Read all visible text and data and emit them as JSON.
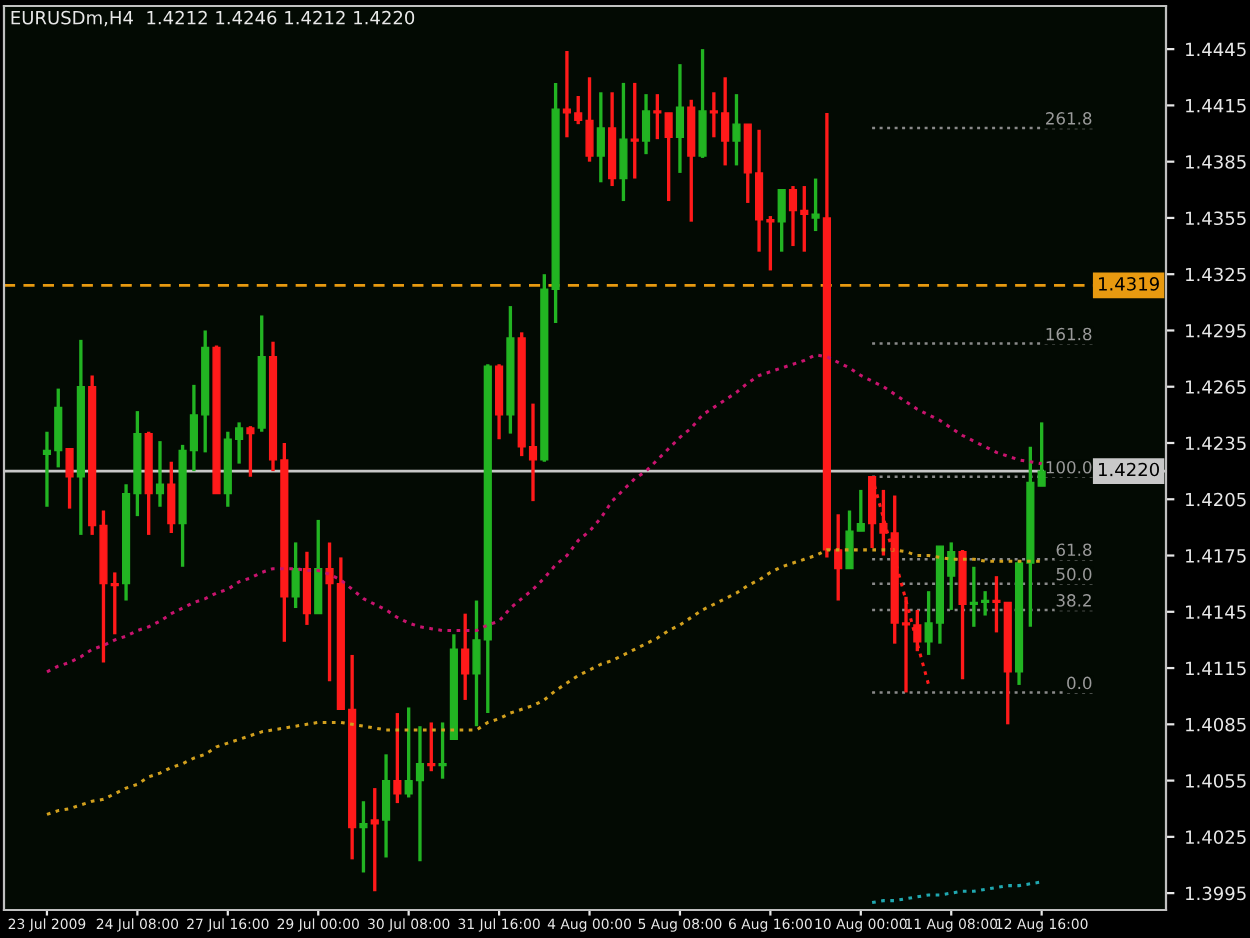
{
  "chart_data": {
    "type": "candlestick",
    "title": "EURUSDm,H4  1.4212 1.4246 1.4212 1.4220",
    "categories": [
      "23 Jul 2009",
      null,
      null,
      null,
      null,
      null,
      null,
      null,
      "24 Jul 08:00",
      null,
      null,
      null,
      null,
      null,
      null,
      null,
      "27 Jul 16:00",
      null,
      null,
      null,
      null,
      null,
      null,
      null,
      "29 Jul 00:00",
      null,
      null,
      null,
      null,
      null,
      null,
      null,
      "30 Jul 08:00",
      null,
      null,
      null,
      null,
      null,
      null,
      null,
      "31 Jul 16:00",
      null,
      null,
      null,
      null,
      null,
      null,
      null,
      "4 Aug 00:00",
      null,
      null,
      null,
      null,
      null,
      null,
      null,
      "5 Aug 08:00",
      null,
      null,
      null,
      null,
      null,
      null,
      null,
      "6 Aug 16:00",
      null,
      null,
      null,
      null,
      null,
      null,
      null,
      "10 Aug 00:00",
      null,
      null,
      null,
      null,
      null,
      null,
      null,
      "11 Aug 08:00",
      null,
      null,
      null,
      null,
      null,
      null,
      null,
      "12 Aug 16:00"
    ],
    "ohlc": [
      [
        1.4229,
        1.4241,
        1.4201,
        1.4231
      ],
      [
        1.4231,
        1.4264,
        1.4222,
        1.4254
      ],
      [
        1.4232,
        1.4232,
        1.42,
        1.4217
      ],
      [
        1.4217,
        1.429,
        1.4186,
        1.4265
      ],
      [
        1.4265,
        1.4271,
        1.4186,
        1.4191
      ],
      [
        1.4191,
        1.4199,
        1.4118,
        1.416
      ],
      [
        1.416,
        1.4166,
        1.4133,
        1.4159
      ],
      [
        1.416,
        1.4213,
        1.4151,
        1.4208
      ],
      [
        1.4208,
        1.4252,
        1.4196,
        1.424
      ],
      [
        1.424,
        1.4241,
        1.4186,
        1.4208
      ],
      [
        1.4208,
        1.4236,
        1.4201,
        1.4213
      ],
      [
        1.4213,
        1.4225,
        1.4187,
        1.4192
      ],
      [
        1.4192,
        1.4234,
        1.4169,
        1.4231
      ],
      [
        1.4231,
        1.4266,
        1.422,
        1.425
      ],
      [
        1.425,
        1.4295,
        1.423,
        1.4286
      ],
      [
        1.4286,
        1.4287,
        1.4208,
        1.4208
      ],
      [
        1.4208,
        1.4241,
        1.4201,
        1.4237
      ],
      [
        1.4237,
        1.4246,
        1.4224,
        1.4243
      ],
      [
        1.4243,
        1.4244,
        1.4217,
        1.424
      ],
      [
        1.4243,
        1.4303,
        1.4241,
        1.4281
      ],
      [
        1.4281,
        1.4289,
        1.422,
        1.4226
      ],
      [
        1.4226,
        1.4235,
        1.4129,
        1.4153
      ],
      [
        1.4153,
        1.4182,
        1.4147,
        1.4168
      ],
      [
        1.4168,
        1.4177,
        1.4138,
        1.4144
      ],
      [
        1.4144,
        1.4194,
        1.4144,
        1.4168
      ],
      [
        1.4168,
        1.4182,
        1.4108,
        1.416
      ],
      [
        1.416,
        1.4174,
        1.4093,
        1.4093
      ],
      [
        1.4093,
        1.4122,
        1.4013,
        1.403
      ],
      [
        1.403,
        1.4044,
        1.4006,
        1.4032
      ],
      [
        1.4034,
        1.4051,
        1.3996,
        1.4032
      ],
      [
        1.4034,
        1.4069,
        1.4014,
        1.4055
      ],
      [
        1.4055,
        1.4091,
        1.4043,
        1.4048
      ],
      [
        1.4048,
        1.4094,
        1.4046,
        1.4055
      ],
      [
        1.4055,
        1.4084,
        1.4012,
        1.4064
      ],
      [
        1.4064,
        1.4086,
        1.406,
        1.4063
      ],
      [
        1.4063,
        1.4086,
        1.4056,
        1.4064
      ],
      [
        1.4077,
        1.4133,
        1.4077,
        1.4125
      ],
      [
        1.4125,
        1.4144,
        1.4098,
        1.4112
      ],
      [
        1.4112,
        1.4151,
        1.4084,
        1.413
      ],
      [
        1.413,
        1.4277,
        1.4091,
        1.4276
      ],
      [
        1.4276,
        1.4277,
        1.4237,
        1.425
      ],
      [
        1.425,
        1.4308,
        1.424,
        1.4291
      ],
      [
        1.4291,
        1.4294,
        1.4228,
        1.4233
      ],
      [
        1.4233,
        1.4256,
        1.4204,
        1.4226
      ],
      [
        1.4226,
        1.4325,
        1.4225,
        1.4317
      ],
      [
        1.4317,
        1.4427,
        1.4299,
        1.4413
      ],
      [
        1.4413,
        1.4444,
        1.4398,
        1.4411
      ],
      [
        1.4411,
        1.442,
        1.4405,
        1.4407
      ],
      [
        1.4407,
        1.443,
        1.4385,
        1.4388
      ],
      [
        1.4388,
        1.4422,
        1.4374,
        1.4403
      ],
      [
        1.4403,
        1.4422,
        1.4372,
        1.4376
      ],
      [
        1.4376,
        1.4427,
        1.4364,
        1.4397
      ],
      [
        1.4397,
        1.4427,
        1.4376,
        1.4396
      ],
      [
        1.4396,
        1.4421,
        1.4389,
        1.4412
      ],
      [
        1.4412,
        1.4421,
        1.4397,
        1.4411
      ],
      [
        1.4411,
        1.4411,
        1.4364,
        1.4398
      ],
      [
        1.4398,
        1.4437,
        1.4379,
        1.4414
      ],
      [
        1.4414,
        1.4418,
        1.4353,
        1.4388
      ],
      [
        1.4388,
        1.4445,
        1.4387,
        1.4412
      ],
      [
        1.4412,
        1.4422,
        1.4398,
        1.4411
      ],
      [
        1.4411,
        1.443,
        1.4383,
        1.4396
      ],
      [
        1.4396,
        1.4421,
        1.4383,
        1.4405
      ],
      [
        1.4405,
        1.4405,
        1.4363,
        1.4379
      ],
      [
        1.4379,
        1.4402,
        1.4337,
        1.4354
      ],
      [
        1.4354,
        1.4356,
        1.4327,
        1.4353
      ],
      [
        1.4353,
        1.437,
        1.4337,
        1.437
      ],
      [
        1.437,
        1.4372,
        1.434,
        1.4359
      ],
      [
        1.4359,
        1.4372,
        1.4337,
        1.4357
      ],
      [
        1.4355,
        1.4376,
        1.4348,
        1.4357
      ],
      [
        1.4355,
        1.4411,
        1.4174,
        1.4178
      ],
      [
        1.4178,
        1.4197,
        1.4151,
        1.4168
      ],
      [
        1.4168,
        1.4199,
        1.4168,
        1.4188
      ],
      [
        1.4188,
        1.421,
        1.4188,
        1.4192
      ],
      [
        1.4217,
        1.4217,
        1.4179,
        1.4192
      ],
      [
        1.4192,
        1.421,
        1.4175,
        1.4187
      ],
      [
        1.4187,
        1.4207,
        1.4128,
        1.4139
      ],
      [
        1.4139,
        1.4153,
        1.4102,
        1.4138
      ],
      [
        1.4138,
        1.4146,
        1.4124,
        1.4129
      ],
      [
        1.4129,
        1.4156,
        1.4122,
        1.4139
      ],
      [
        1.4139,
        1.418,
        1.4128,
        1.418
      ],
      [
        1.4164,
        1.4182,
        1.4146,
        1.4177
      ],
      [
        1.4177,
        1.4178,
        1.4109,
        1.4149
      ],
      [
        1.4149,
        1.4169,
        1.4137,
        1.415
      ],
      [
        1.415,
        1.4156,
        1.4143,
        1.4151
      ],
      [
        1.4151,
        1.4164,
        1.4134,
        1.415
      ],
      [
        1.415,
        1.415,
        1.4085,
        1.4113
      ],
      [
        1.4113,
        1.4172,
        1.4106,
        1.4171
      ],
      [
        1.4171,
        1.4233,
        1.4137,
        1.4214
      ],
      [
        1.4212,
        1.4246,
        1.4212,
        1.422
      ]
    ],
    "colors": [
      "#22b422",
      "#22b422",
      "#ff1a1a",
      "#22b422",
      "#ff1a1a",
      "#ff1a1a",
      "#ff1a1a",
      "#22b422",
      "#22b422",
      "#ff1a1a",
      "#22b422",
      "#ff1a1a",
      "#22b422",
      "#22b422",
      "#22b422",
      "#ff1a1a",
      "#22b422",
      "#22b422",
      "#ff1a1a",
      "#22b422",
      "#ff1a1a",
      "#ff1a1a",
      "#22b422",
      "#ff1a1a",
      "#22b422",
      "#ff1a1a",
      "#ff1a1a",
      "#ff1a1a",
      "#22b422",
      "#ff1a1a",
      "#22b422",
      "#ff1a1a",
      "#22b422",
      "#22b422",
      "#ff1a1a",
      "#22b422",
      "#22b422",
      "#ff1a1a",
      "#22b422",
      "#22b422",
      "#ff1a1a",
      "#22b422",
      "#ff1a1a",
      "#ff1a1a",
      "#22b422",
      "#22b422",
      "#ff1a1a",
      "#ff1a1a",
      "#ff1a1a",
      "#22b422",
      "#ff1a1a",
      "#22b422",
      "#ff1a1a",
      "#22b422",
      "#ff1a1a",
      "#ff1a1a",
      "#22b422",
      "#ff1a1a",
      "#22b422",
      "#ff1a1a",
      "#ff1a1a",
      "#22b422",
      "#ff1a1a",
      "#ff1a1a",
      "#ff1a1a",
      "#22b422",
      "#ff1a1a",
      "#ff1a1a",
      "#22b422",
      "#ff1a1a",
      "#ff1a1a",
      "#22b422",
      "#22b422",
      "#ff1a1a",
      "#ff1a1a",
      "#ff1a1a",
      "#ff1a1a",
      "#ff1a1a",
      "#22b422",
      "#22b422",
      "#22b422",
      "#ff1a1a",
      "#22b422",
      "#22b422",
      "#ff1a1a",
      "#ff1a1a",
      "#22b422",
      "#22b422",
      "#22b422"
    ],
    "series": [
      {
        "type": "line",
        "color": "#c8146e",
        "line_style": "dotted",
        "values": [
          1.4113,
          1.4116,
          1.4118,
          1.4121,
          1.4125,
          1.4127,
          1.413,
          1.4132,
          1.4135,
          1.4137,
          1.414,
          1.4144,
          1.4147,
          1.415,
          1.4152,
          1.4155,
          1.4157,
          1.4161,
          1.4163,
          1.4166,
          1.4168,
          1.4168,
          1.4168,
          1.4167,
          1.4167,
          1.4165,
          1.4162,
          1.4157,
          1.4152,
          1.4149,
          1.4146,
          1.4142,
          1.4139,
          1.4137,
          1.4136,
          1.4135,
          1.4135,
          1.4135,
          1.4135,
          1.4138,
          1.414,
          1.4147,
          1.4152,
          1.4157,
          1.4163,
          1.417,
          1.4175,
          1.4183,
          1.4188,
          1.4195,
          1.4204,
          1.421,
          1.4216,
          1.422,
          1.4226,
          1.4232,
          1.4238,
          1.4243,
          1.425,
          1.4254,
          1.4258,
          1.4262,
          1.4267,
          1.4271,
          1.4273,
          1.4275,
          1.4277,
          1.4279,
          1.4282,
          1.4281,
          1.4278,
          1.4275,
          1.4271,
          1.4268,
          1.4265,
          1.4261,
          1.4257,
          1.4253,
          1.425,
          1.4247,
          1.4243,
          1.4239,
          1.4236,
          1.4233,
          1.423,
          1.4228,
          1.4226,
          1.4225,
          1.4224
        ]
      },
      {
        "type": "line",
        "color": "#d2a01e",
        "line_style": "dotted",
        "values": [
          1.4037,
          1.4039,
          1.404,
          1.4042,
          1.4044,
          1.4045,
          1.4048,
          1.4051,
          1.4053,
          1.4057,
          1.4059,
          1.4062,
          1.4064,
          1.4067,
          1.4069,
          1.4073,
          1.4075,
          1.4077,
          1.4079,
          1.4081,
          1.4082,
          1.4083,
          1.4084,
          1.4085,
          1.4086,
          1.4086,
          1.4086,
          1.4085,
          1.4084,
          1.4083,
          1.4082,
          1.4082,
          1.4082,
          1.4082,
          1.4082,
          1.4082,
          1.4082,
          1.4082,
          1.4082,
          1.4086,
          1.4088,
          1.4091,
          1.4093,
          1.4095,
          1.4098,
          1.4103,
          1.4107,
          1.4111,
          1.4114,
          1.4117,
          1.4119,
          1.4122,
          1.4125,
          1.4128,
          1.4131,
          1.4135,
          1.4138,
          1.4142,
          1.4146,
          1.4149,
          1.4152,
          1.4155,
          1.4159,
          1.4162,
          1.4166,
          1.4169,
          1.4171,
          1.4173,
          1.4175,
          1.4178,
          1.4178,
          1.4178,
          1.4178,
          1.4178,
          1.4178,
          1.4178,
          1.4177,
          1.4175,
          1.4175,
          1.4174,
          1.4173,
          1.4173,
          1.4173,
          1.4172,
          1.4172,
          1.4172,
          1.4172,
          1.4172,
          1.4172
        ]
      },
      {
        "type": "line",
        "color": "#20a8b0",
        "line_style": "dotted",
        "values": [
          null,
          null,
          null,
          null,
          null,
          null,
          null,
          null,
          null,
          null,
          null,
          null,
          null,
          null,
          null,
          null,
          null,
          null,
          null,
          null,
          null,
          null,
          null,
          null,
          null,
          null,
          null,
          null,
          null,
          null,
          null,
          null,
          null,
          null,
          null,
          null,
          null,
          null,
          null,
          null,
          null,
          null,
          null,
          null,
          null,
          null,
          null,
          null,
          null,
          null,
          null,
          null,
          null,
          null,
          null,
          null,
          null,
          null,
          null,
          null,
          null,
          null,
          null,
          null,
          null,
          null,
          null,
          null,
          null,
          null,
          null,
          null,
          null,
          1.399,
          1.3991,
          1.3991,
          1.3992,
          1.3993,
          1.3994,
          1.3994,
          1.3995,
          1.3996,
          1.3996,
          1.3997,
          1.3998,
          1.3999,
          1.3999,
          1.4,
          1.4001
        ]
      },
      {
        "type": "line",
        "color": "#ff1a1a",
        "line_style": "dotted",
        "values": [
          null,
          null,
          null,
          null,
          null,
          null,
          null,
          null,
          null,
          null,
          null,
          null,
          null,
          null,
          null,
          null,
          null,
          null,
          null,
          null,
          null,
          null,
          null,
          null,
          null,
          null,
          null,
          null,
          null,
          null,
          null,
          null,
          null,
          null,
          null,
          null,
          null,
          null,
          null,
          null,
          null,
          null,
          null,
          null,
          null,
          null,
          null,
          null,
          null,
          null,
          null,
          null,
          null,
          null,
          null,
          null,
          null,
          null,
          null,
          null,
          null,
          null,
          null,
          null,
          null,
          null,
          null,
          null,
          null,
          null,
          null,
          null,
          null,
          1.4217,
          1.4195,
          1.4173,
          1.4151,
          1.4128,
          1.4106,
          null,
          null,
          null,
          null,
          null,
          null,
          null,
          null,
          null,
          null
        ]
      }
    ],
    "ylim": [
      1.3986,
      1.4468
    ],
    "yticks": [
      1.3995,
      1.4025,
      1.4055,
      1.4085,
      1.4115,
      1.4145,
      1.4175,
      1.4205,
      1.4235,
      1.4265,
      1.4295,
      1.4325,
      1.4355,
      1.4385,
      1.4415,
      1.4445
    ],
    "ref_lines": [
      {
        "axis": "y",
        "value": 1.4319,
        "label": "1.4319",
        "color": "#e89a10",
        "line_style": "dashed"
      },
      {
        "axis": "y",
        "value": 1.422,
        "label": "1.4220",
        "color": "#c8c8c8",
        "line_style": "solid"
      },
      {
        "axis": "y",
        "value": 1.4403,
        "color": "#8a8a8a",
        "line_style": "dotted"
      },
      {
        "axis": "y",
        "value": 1.4288,
        "color": "#8a8a8a",
        "line_style": "dotted"
      },
      {
        "axis": "y",
        "value": 1.4217,
        "color": "#8a8a8a",
        "line_style": "dotted"
      },
      {
        "axis": "y",
        "value": 1.4173,
        "color": "#8a8a8a",
        "line_style": "dotted"
      },
      {
        "axis": "y",
        "value": 1.416,
        "color": "#8a8a8a",
        "line_style": "dotted"
      },
      {
        "axis": "y",
        "value": 1.4146,
        "color": "#8a8a8a",
        "line_style": "dotted"
      },
      {
        "axis": "y",
        "value": 1.4102,
        "color": "#8a8a8a",
        "line_style": "dotted"
      }
    ],
    "annotations": [
      {
        "text": "261.8",
        "y": 1.4403
      },
      {
        "text": "161.8",
        "y": 1.4288
      },
      {
        "text": "100.0",
        "y": 1.4217
      },
      {
        "text": "61.8",
        "y": 1.4173
      },
      {
        "text": "50.0",
        "y": 1.416
      },
      {
        "text": "38.2",
        "y": 1.4146
      },
      {
        "text": "0.0",
        "y": 1.4102
      }
    ],
    "grid": false,
    "legend": false
  }
}
